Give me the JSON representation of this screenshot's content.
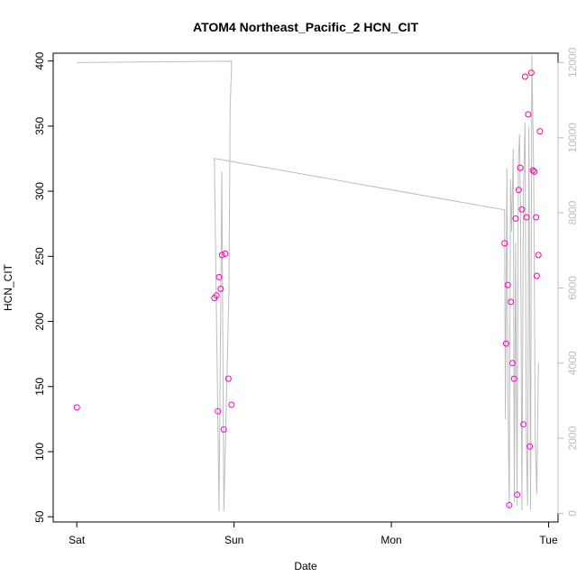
{
  "chart_data": {
    "type": "scatter",
    "title": "ATOM4 Northeast_Pacific_2 HCN_CIT",
    "xlabel": "Date",
    "ylabel": "HCN_CIT",
    "x_ticks": [
      "Sat",
      "Sun",
      "Mon",
      "Tue"
    ],
    "x_range_days": [
      -0.15,
      3.06
    ],
    "y_left": {
      "ticks": [
        50,
        100,
        150,
        200,
        250,
        300,
        350,
        400
      ],
      "range": [
        46,
        406
      ]
    },
    "y_right": {
      "ticks": [
        0,
        2000,
        4000,
        6000,
        8000,
        10000,
        12000
      ],
      "range": [
        -230,
        12250
      ],
      "color": "#bdbdbd"
    },
    "grid": false,
    "legend": "none",
    "series": [
      {
        "role": "points",
        "axis": "left",
        "marker": "open-circle",
        "color_low": "#ff00ff",
        "color_high": "#ff0080",
        "points": [
          {
            "x": 0.0,
            "y": 134
          },
          {
            "x": 0.875,
            "y": 218
          },
          {
            "x": 0.888,
            "y": 220
          },
          {
            "x": 0.897,
            "y": 131
          },
          {
            "x": 0.905,
            "y": 234
          },
          {
            "x": 0.915,
            "y": 225
          },
          {
            "x": 0.923,
            "y": 251
          },
          {
            "x": 0.934,
            "y": 117
          },
          {
            "x": 0.944,
            "y": 252
          },
          {
            "x": 0.964,
            "y": 156
          },
          {
            "x": 0.984,
            "y": 136
          },
          {
            "x": 2.72,
            "y": 260
          },
          {
            "x": 2.73,
            "y": 183
          },
          {
            "x": 2.74,
            "y": 228
          },
          {
            "x": 2.75,
            "y": 59
          },
          {
            "x": 2.76,
            "y": 215
          },
          {
            "x": 2.77,
            "y": 168
          },
          {
            "x": 2.78,
            "y": 156
          },
          {
            "x": 2.79,
            "y": 279
          },
          {
            "x": 2.8,
            "y": 67
          },
          {
            "x": 2.81,
            "y": 301
          },
          {
            "x": 2.82,
            "y": 318
          },
          {
            "x": 2.83,
            "y": 286
          },
          {
            "x": 2.84,
            "y": 121
          },
          {
            "x": 2.85,
            "y": 388
          },
          {
            "x": 2.86,
            "y": 280
          },
          {
            "x": 2.87,
            "y": 359
          },
          {
            "x": 2.88,
            "y": 104
          },
          {
            "x": 2.89,
            "y": 391
          },
          {
            "x": 2.9,
            "y": 316
          },
          {
            "x": 2.91,
            "y": 315
          },
          {
            "x": 2.92,
            "y": 280
          },
          {
            "x": 2.925,
            "y": 235
          },
          {
            "x": 2.935,
            "y": 251
          },
          {
            "x": 2.945,
            "y": 346
          }
        ]
      },
      {
        "role": "line",
        "axis": "right",
        "color": "#bdbdbd",
        "points": [
          {
            "x": 0.0,
            "y": 12000
          },
          {
            "x": 0.985,
            "y": 12040
          },
          {
            "x": 0.975,
            "y": 10800
          },
          {
            "x": 0.968,
            "y": 6000
          },
          {
            "x": 0.935,
            "y": 50
          },
          {
            "x": 0.922,
            "y": 9100
          },
          {
            "x": 0.905,
            "y": 60
          },
          {
            "x": 0.875,
            "y": 9450
          },
          {
            "x": 2.72,
            "y": 8080
          },
          {
            "x": 2.725,
            "y": 2500
          },
          {
            "x": 2.735,
            "y": 9180
          },
          {
            "x": 2.742,
            "y": 3000
          },
          {
            "x": 2.75,
            "y": 100
          },
          {
            "x": 2.758,
            "y": 8900
          },
          {
            "x": 2.765,
            "y": 7500
          },
          {
            "x": 2.775,
            "y": 9700
          },
          {
            "x": 2.782,
            "y": 300
          },
          {
            "x": 2.79,
            "y": 7200
          },
          {
            "x": 2.8,
            "y": 200
          },
          {
            "x": 2.808,
            "y": 9400
          },
          {
            "x": 2.815,
            "y": 10100
          },
          {
            "x": 2.822,
            "y": 7700
          },
          {
            "x": 2.83,
            "y": 80
          },
          {
            "x": 2.84,
            "y": 8600
          },
          {
            "x": 2.85,
            "y": 10400
          },
          {
            "x": 2.858,
            "y": 2000
          },
          {
            "x": 2.866,
            "y": 200
          },
          {
            "x": 2.875,
            "y": 10300
          },
          {
            "x": 2.885,
            "y": 100
          },
          {
            "x": 2.893,
            "y": 12200
          },
          {
            "x": 2.905,
            "y": 9000
          },
          {
            "x": 2.915,
            "y": 2000
          },
          {
            "x": 2.925,
            "y": 500
          },
          {
            "x": 2.935,
            "y": 4000
          }
        ]
      }
    ]
  }
}
